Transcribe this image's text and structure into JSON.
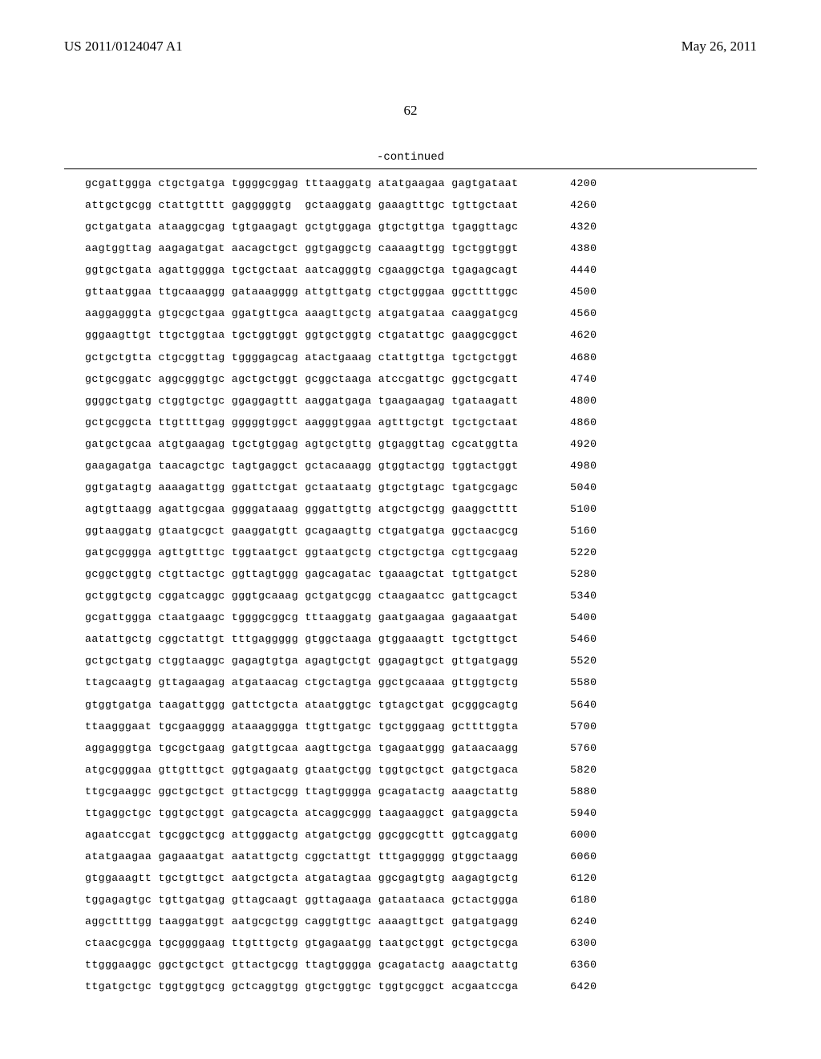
{
  "header": {
    "left": "US 2011/0124047 A1",
    "right": "May 26, 2011"
  },
  "page_number": "62",
  "continued_label": "-continued",
  "sequence": {
    "rows": [
      {
        "seq": "gcgattggga ctgctgatga tggggcggag tttaaggatg atatgaagaa gagtgataat",
        "pos": "4200"
      },
      {
        "seq": "attgctgcgg ctattgtttt gagggggtg  gctaaggatg gaaagtttgc tgttgctaat",
        "pos": "4260"
      },
      {
        "seq": "gctgatgata ataaggcgag tgtgaagagt gctgtggaga gtgctgttga tgaggttagc",
        "pos": "4320"
      },
      {
        "seq": "aagtggttag aagagatgat aacagctgct ggtgaggctg caaaagttgg tgctggtggt",
        "pos": "4380"
      },
      {
        "seq": "ggtgctgata agattgggga tgctgctaat aatcagggtg cgaaggctga tgagagcagt",
        "pos": "4440"
      },
      {
        "seq": "gttaatggaa ttgcaaaggg gataaagggg attgttgatg ctgctgggaa ggcttttggc",
        "pos": "4500"
      },
      {
        "seq": "aaggagggta gtgcgctgaa ggatgttgca aaagttgctg atgatgataa caaggatgcg",
        "pos": "4560"
      },
      {
        "seq": "gggaagttgt ttgctggtaa tgctggtggt ggtgctggtg ctgatattgc gaaggcggct",
        "pos": "4620"
      },
      {
        "seq": "gctgctgtta ctgcggttag tggggagcag atactgaaag ctattgttga tgctgctggt",
        "pos": "4680"
      },
      {
        "seq": "gctgcggatc aggcgggtgc agctgctggt gcggctaaga atccgattgc ggctgcgatt",
        "pos": "4740"
      },
      {
        "seq": "ggggctgatg ctggtgctgc ggaggagttt aaggatgaga tgaagaagag tgataagatt",
        "pos": "4800"
      },
      {
        "seq": "gctgcggcta ttgttttgag gggggtggct aagggtggaa agtttgctgt tgctgctaat",
        "pos": "4860"
      },
      {
        "seq": "gatgctgcaa atgtgaagag tgctgtggag agtgctgttg gtgaggttag cgcatggtta",
        "pos": "4920"
      },
      {
        "seq": "gaagagatga taacagctgc tagtgaggct gctacaaagg gtggtactgg tggtactggt",
        "pos": "4980"
      },
      {
        "seq": "ggtgatagtg aaaagattgg ggattctgat gctaataatg gtgctgtagc tgatgcgagc",
        "pos": "5040"
      },
      {
        "seq": "agtgttaagg agattgcgaa ggggataaag gggattgttg atgctgctgg gaaggctttt",
        "pos": "5100"
      },
      {
        "seq": "ggtaaggatg gtaatgcgct gaaggatgtt gcagaagttg ctgatgatga ggctaacgcg",
        "pos": "5160"
      },
      {
        "seq": "gatgcgggga agttgtttgc tggtaatgct ggtaatgctg ctgctgctga cgttgcgaag",
        "pos": "5220"
      },
      {
        "seq": "gcggctggtg ctgttactgc ggttagtggg gagcagatac tgaaagctat tgttgatgct",
        "pos": "5280"
      },
      {
        "seq": "gctggtgctg cggatcaggc gggtgcaaag gctgatgcgg ctaagaatcc gattgcagct",
        "pos": "5340"
      },
      {
        "seq": "gcgattggga ctaatgaagc tggggcggcg tttaaggatg gaatgaagaa gagaaatgat",
        "pos": "5400"
      },
      {
        "seq": "aatattgctg cggctattgt tttgaggggg gtggctaaga gtggaaagtt tgctgttgct",
        "pos": "5460"
      },
      {
        "seq": "gctgctgatg ctggtaaggc gagagtgtga agagtgctgt ggagagtgct gttgatgagg",
        "pos": "5520"
      },
      {
        "seq": "ttagcaagtg gttagaagag atgataacag ctgctagtga ggctgcaaaa gttggtgctg",
        "pos": "5580"
      },
      {
        "seq": "gtggtgatga taagattggg gattctgcta ataatggtgc tgtagctgat gcgggcagtg",
        "pos": "5640"
      },
      {
        "seq": "ttaagggaat tgcgaagggg ataaagggga ttgttgatgc tgctgggaag gcttttggta",
        "pos": "5700"
      },
      {
        "seq": "aggagggtga tgcgctgaag gatgttgcaa aagttgctga tgagaatggg gataacaagg",
        "pos": "5760"
      },
      {
        "seq": "atgcggggaa gttgtttgct ggtgagaatg gtaatgctgg tggtgctgct gatgctgaca",
        "pos": "5820"
      },
      {
        "seq": "ttgcgaaggc ggctgctgct gttactgcgg ttagtgggga gcagatactg aaagctattg",
        "pos": "5880"
      },
      {
        "seq": "ttgaggctgc tggtgctggt gatgcagcta atcaggcggg taagaaggct gatgaggcta",
        "pos": "5940"
      },
      {
        "seq": "agaatccgat tgcggctgcg attgggactg atgatgctgg ggcggcgttt ggtcaggatg",
        "pos": "6000"
      },
      {
        "seq": "atatgaagaa gagaaatgat aatattgctg cggctattgt tttgaggggg gtggctaagg",
        "pos": "6060"
      },
      {
        "seq": "gtggaaagtt tgctgttgct aatgctgcta atgatagtaa ggcgagtgtg aagagtgctg",
        "pos": "6120"
      },
      {
        "seq": "tggagagtgc tgttgatgag gttagcaagt ggttagaaga gataataaca gctactggga",
        "pos": "6180"
      },
      {
        "seq": "aggcttttgg taaggatggt aatgcgctgg caggtgttgc aaaagttgct gatgatgagg",
        "pos": "6240"
      },
      {
        "seq": "ctaacgcgga tgcggggaag ttgtttgctg gtgagaatgg taatgctggt gctgctgcga",
        "pos": "6300"
      },
      {
        "seq": "ttgggaaggc ggctgctgct gttactgcgg ttagtgggga gcagatactg aaagctattg",
        "pos": "6360"
      },
      {
        "seq": "ttgatgctgc tggtggtgcg gctcaggtgg gtgctggtgc tggtgcggct acgaatccga",
        "pos": "6420"
      }
    ]
  }
}
